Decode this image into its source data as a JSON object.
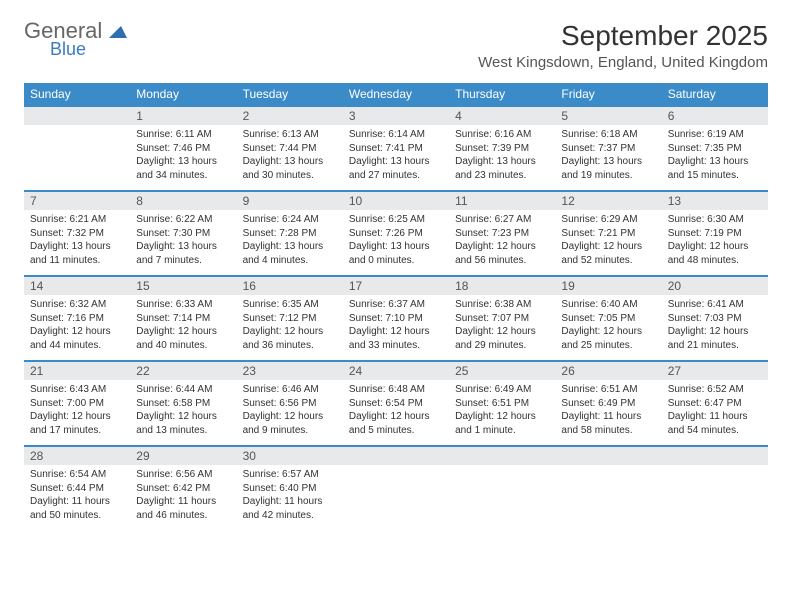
{
  "logo": {
    "general": "General",
    "blue": "Blue"
  },
  "title": "September 2025",
  "location": "West Kingsdown, England, United Kingdom",
  "colors": {
    "header_bg": "#3b8bc9",
    "header_text": "#ffffff",
    "daynum_bg": "#e8e9ea",
    "border": "#3b8bc9",
    "logo_general": "#666666",
    "logo_blue": "#3b7bbf",
    "text": "#333333"
  },
  "day_headers": [
    "Sunday",
    "Monday",
    "Tuesday",
    "Wednesday",
    "Thursday",
    "Friday",
    "Saturday"
  ],
  "weeks": [
    {
      "nums": [
        "",
        "1",
        "2",
        "3",
        "4",
        "5",
        "6"
      ],
      "cells": [
        {
          "sunrise": "",
          "sunset": "",
          "daylight": ""
        },
        {
          "sunrise": "Sunrise: 6:11 AM",
          "sunset": "Sunset: 7:46 PM",
          "daylight": "Daylight: 13 hours and 34 minutes."
        },
        {
          "sunrise": "Sunrise: 6:13 AM",
          "sunset": "Sunset: 7:44 PM",
          "daylight": "Daylight: 13 hours and 30 minutes."
        },
        {
          "sunrise": "Sunrise: 6:14 AM",
          "sunset": "Sunset: 7:41 PM",
          "daylight": "Daylight: 13 hours and 27 minutes."
        },
        {
          "sunrise": "Sunrise: 6:16 AM",
          "sunset": "Sunset: 7:39 PM",
          "daylight": "Daylight: 13 hours and 23 minutes."
        },
        {
          "sunrise": "Sunrise: 6:18 AM",
          "sunset": "Sunset: 7:37 PM",
          "daylight": "Daylight: 13 hours and 19 minutes."
        },
        {
          "sunrise": "Sunrise: 6:19 AM",
          "sunset": "Sunset: 7:35 PM",
          "daylight": "Daylight: 13 hours and 15 minutes."
        }
      ]
    },
    {
      "nums": [
        "7",
        "8",
        "9",
        "10",
        "11",
        "12",
        "13"
      ],
      "cells": [
        {
          "sunrise": "Sunrise: 6:21 AM",
          "sunset": "Sunset: 7:32 PM",
          "daylight": "Daylight: 13 hours and 11 minutes."
        },
        {
          "sunrise": "Sunrise: 6:22 AM",
          "sunset": "Sunset: 7:30 PM",
          "daylight": "Daylight: 13 hours and 7 minutes."
        },
        {
          "sunrise": "Sunrise: 6:24 AM",
          "sunset": "Sunset: 7:28 PM",
          "daylight": "Daylight: 13 hours and 4 minutes."
        },
        {
          "sunrise": "Sunrise: 6:25 AM",
          "sunset": "Sunset: 7:26 PM",
          "daylight": "Daylight: 13 hours and 0 minutes."
        },
        {
          "sunrise": "Sunrise: 6:27 AM",
          "sunset": "Sunset: 7:23 PM",
          "daylight": "Daylight: 12 hours and 56 minutes."
        },
        {
          "sunrise": "Sunrise: 6:29 AM",
          "sunset": "Sunset: 7:21 PM",
          "daylight": "Daylight: 12 hours and 52 minutes."
        },
        {
          "sunrise": "Sunrise: 6:30 AM",
          "sunset": "Sunset: 7:19 PM",
          "daylight": "Daylight: 12 hours and 48 minutes."
        }
      ]
    },
    {
      "nums": [
        "14",
        "15",
        "16",
        "17",
        "18",
        "19",
        "20"
      ],
      "cells": [
        {
          "sunrise": "Sunrise: 6:32 AM",
          "sunset": "Sunset: 7:16 PM",
          "daylight": "Daylight: 12 hours and 44 minutes."
        },
        {
          "sunrise": "Sunrise: 6:33 AM",
          "sunset": "Sunset: 7:14 PM",
          "daylight": "Daylight: 12 hours and 40 minutes."
        },
        {
          "sunrise": "Sunrise: 6:35 AM",
          "sunset": "Sunset: 7:12 PM",
          "daylight": "Daylight: 12 hours and 36 minutes."
        },
        {
          "sunrise": "Sunrise: 6:37 AM",
          "sunset": "Sunset: 7:10 PM",
          "daylight": "Daylight: 12 hours and 33 minutes."
        },
        {
          "sunrise": "Sunrise: 6:38 AM",
          "sunset": "Sunset: 7:07 PM",
          "daylight": "Daylight: 12 hours and 29 minutes."
        },
        {
          "sunrise": "Sunrise: 6:40 AM",
          "sunset": "Sunset: 7:05 PM",
          "daylight": "Daylight: 12 hours and 25 minutes."
        },
        {
          "sunrise": "Sunrise: 6:41 AM",
          "sunset": "Sunset: 7:03 PM",
          "daylight": "Daylight: 12 hours and 21 minutes."
        }
      ]
    },
    {
      "nums": [
        "21",
        "22",
        "23",
        "24",
        "25",
        "26",
        "27"
      ],
      "cells": [
        {
          "sunrise": "Sunrise: 6:43 AM",
          "sunset": "Sunset: 7:00 PM",
          "daylight": "Daylight: 12 hours and 17 minutes."
        },
        {
          "sunrise": "Sunrise: 6:44 AM",
          "sunset": "Sunset: 6:58 PM",
          "daylight": "Daylight: 12 hours and 13 minutes."
        },
        {
          "sunrise": "Sunrise: 6:46 AM",
          "sunset": "Sunset: 6:56 PM",
          "daylight": "Daylight: 12 hours and 9 minutes."
        },
        {
          "sunrise": "Sunrise: 6:48 AM",
          "sunset": "Sunset: 6:54 PM",
          "daylight": "Daylight: 12 hours and 5 minutes."
        },
        {
          "sunrise": "Sunrise: 6:49 AM",
          "sunset": "Sunset: 6:51 PM",
          "daylight": "Daylight: 12 hours and 1 minute."
        },
        {
          "sunrise": "Sunrise: 6:51 AM",
          "sunset": "Sunset: 6:49 PM",
          "daylight": "Daylight: 11 hours and 58 minutes."
        },
        {
          "sunrise": "Sunrise: 6:52 AM",
          "sunset": "Sunset: 6:47 PM",
          "daylight": "Daylight: 11 hours and 54 minutes."
        }
      ]
    },
    {
      "nums": [
        "28",
        "29",
        "30",
        "",
        "",
        "",
        ""
      ],
      "cells": [
        {
          "sunrise": "Sunrise: 6:54 AM",
          "sunset": "Sunset: 6:44 PM",
          "daylight": "Daylight: 11 hours and 50 minutes."
        },
        {
          "sunrise": "Sunrise: 6:56 AM",
          "sunset": "Sunset: 6:42 PM",
          "daylight": "Daylight: 11 hours and 46 minutes."
        },
        {
          "sunrise": "Sunrise: 6:57 AM",
          "sunset": "Sunset: 6:40 PM",
          "daylight": "Daylight: 11 hours and 42 minutes."
        },
        {
          "sunrise": "",
          "sunset": "",
          "daylight": ""
        },
        {
          "sunrise": "",
          "sunset": "",
          "daylight": ""
        },
        {
          "sunrise": "",
          "sunset": "",
          "daylight": ""
        },
        {
          "sunrise": "",
          "sunset": "",
          "daylight": ""
        }
      ]
    }
  ]
}
